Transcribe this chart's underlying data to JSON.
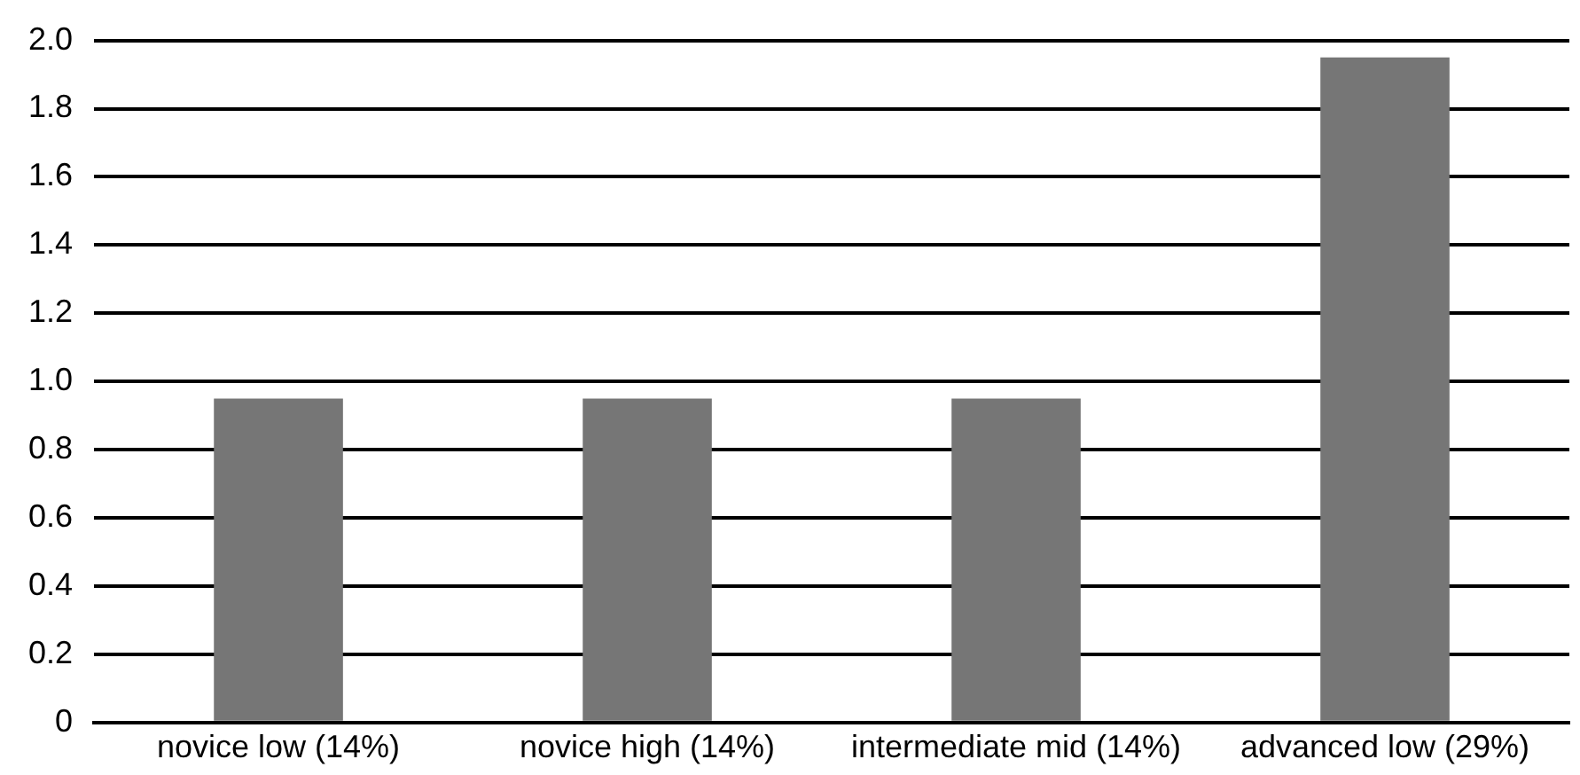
{
  "chart_data": {
    "type": "bar",
    "categories": [
      "novice low (14%)",
      "novice high (14%)",
      "intermediate mid (14%)",
      "advanced low (29%)"
    ],
    "values": [
      0.95,
      0.95,
      0.95,
      1.95
    ],
    "color": "#767676",
    "ylim": [
      0,
      2.0
    ],
    "yticks": [
      0,
      {
        "value": 0.2,
        "label": "0.2"
      },
      {
        "value": 0.4,
        "label": "0.4"
      },
      {
        "value": 0.6,
        "label": "0.6"
      },
      {
        "value": 0.8,
        "label": "0.8"
      },
      {
        "value": 1.0,
        "label": "1.0"
      },
      {
        "value": 1.2,
        "label": "1.2"
      },
      {
        "value": 1.4,
        "label": "1.4"
      },
      {
        "value": 1.6,
        "label": "1.6"
      },
      {
        "value": 1.8,
        "label": "1.8"
      },
      {
        "value": 2.0,
        "label": "2.0"
      }
    ],
    "grid": "y"
  }
}
